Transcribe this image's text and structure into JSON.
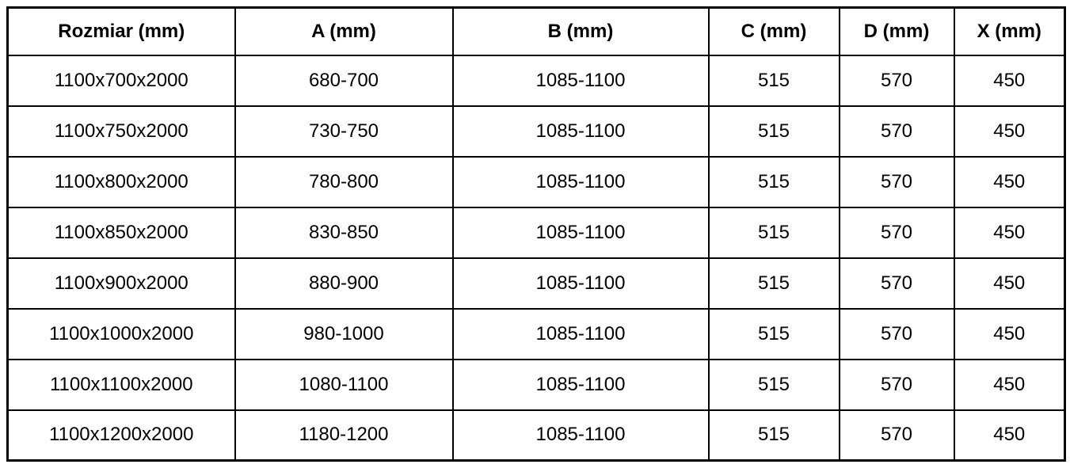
{
  "table": {
    "headers": [
      "Rozmiar (mm)",
      "A (mm)",
      "B (mm)",
      "C (mm)",
      "D (mm)",
      "X (mm)"
    ],
    "rows": [
      [
        "1100x700x2000",
        "680-700",
        "1085-1100",
        "515",
        "570",
        "450"
      ],
      [
        "1100x750x2000",
        "730-750",
        "1085-1100",
        "515",
        "570",
        "450"
      ],
      [
        "1100x800x2000",
        "780-800",
        "1085-1100",
        "515",
        "570",
        "450"
      ],
      [
        "1100x850x2000",
        "830-850",
        "1085-1100",
        "515",
        "570",
        "450"
      ],
      [
        "1100x900x2000",
        "880-900",
        "1085-1100",
        "515",
        "570",
        "450"
      ],
      [
        "1100x1000x2000",
        "980-1000",
        "1085-1100",
        "515",
        "570",
        "450"
      ],
      [
        "1100x1100x2000",
        "1080-1100",
        "1085-1100",
        "515",
        "570",
        "450"
      ],
      [
        "1100x1200x2000",
        "1180-1200",
        "1085-1100",
        "515",
        "570",
        "450"
      ]
    ],
    "colors": {
      "border": "#000000",
      "text": "#000000",
      "background": "#ffffff"
    }
  }
}
